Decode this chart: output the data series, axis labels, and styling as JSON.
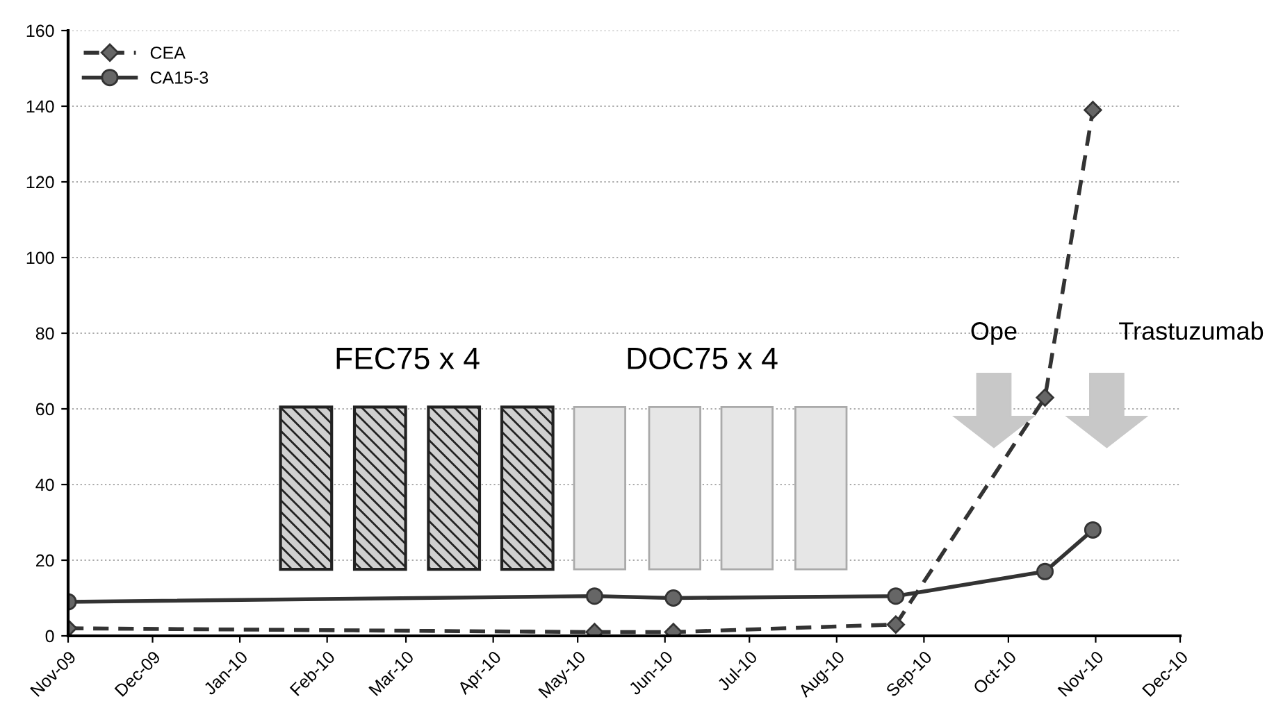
{
  "chart_data": {
    "type": "line",
    "annotations": [
      "FEC75 x 4",
      "DOC75 x 4",
      "Ope",
      "Trastuzumab"
    ],
    "series": [
      {
        "name": "CEA",
        "color": "#333333",
        "marker": "diamond",
        "line_style": "dashed",
        "x": [
          "2009-11-01",
          "2010-05-07",
          "2010-06-04",
          "2010-08-22",
          "2010-10-14",
          "2010-10-31"
        ],
        "values": [
          2,
          1,
          1,
          3,
          63,
          139
        ]
      },
      {
        "name": "CA15-3",
        "color": "#333333",
        "marker": "circle",
        "line_style": "solid",
        "x": [
          "2009-11-01",
          "2010-05-07",
          "2010-06-04",
          "2010-08-22",
          "2010-10-14",
          "2010-10-31"
        ],
        "values": [
          9,
          10.5,
          10,
          10.5,
          17,
          28
        ]
      }
    ],
    "xlim": [
      "2009-11-01",
      "2010-12-01"
    ],
    "xticks": [
      {
        "value": "2009-11-01",
        "label": "Nov-09"
      },
      {
        "value": "2009-12-01",
        "label": "Dec-09"
      },
      {
        "value": "2010-01-01",
        "label": "Jan-10"
      },
      {
        "value": "2010-02-01",
        "label": "Feb-10"
      },
      {
        "value": "2010-03-01",
        "label": "Mar-10"
      },
      {
        "value": "2010-04-01",
        "label": "Apr-10"
      },
      {
        "value": "2010-05-01",
        "label": "May-10"
      },
      {
        "value": "2010-06-01",
        "label": "Jun-10"
      },
      {
        "value": "2010-07-01",
        "label": "Jul-10"
      },
      {
        "value": "2010-08-01",
        "label": "Aug-10"
      },
      {
        "value": "2010-09-01",
        "label": "Sep-10"
      },
      {
        "value": "2010-10-01",
        "label": "Oct-10"
      },
      {
        "value": "2010-11-01",
        "label": "Nov-10"
      },
      {
        "value": "2010-12-01",
        "label": "Dec-10"
      }
    ],
    "ylim": [
      0,
      160
    ],
    "yticks": [
      0,
      20,
      40,
      60,
      80,
      100,
      120,
      140,
      160
    ],
    "grid": "y",
    "legend": "top left"
  }
}
